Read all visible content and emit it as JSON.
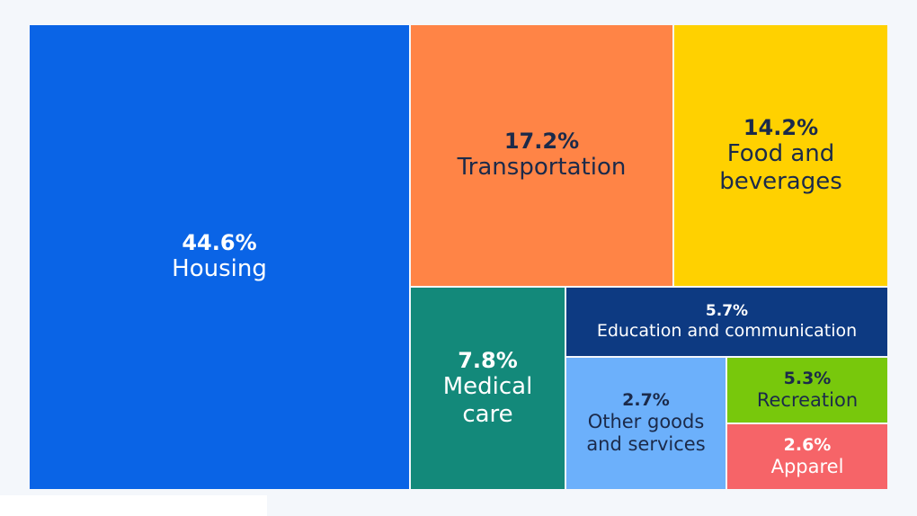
{
  "chart_data": {
    "type": "treemap",
    "title": "",
    "unit": "%",
    "items": [
      {
        "name": "Housing",
        "value": 44.6,
        "value_label": "44.6%",
        "color": "#0a64e6",
        "text_color": "#ffffff"
      },
      {
        "name": "Transportation",
        "value": 17.2,
        "value_label": "17.2%",
        "color": "#ff8446",
        "text_color": "#1b2a4a"
      },
      {
        "name": "Food and\nbeverages",
        "value": 14.2,
        "value_label": "14.2%",
        "color": "#ffd100",
        "text_color": "#1b2a4a"
      },
      {
        "name": "Medical\ncare",
        "value": 7.8,
        "value_label": "7.8%",
        "color": "#13897a",
        "text_color": "#ffffff"
      },
      {
        "name": "Education and communication",
        "value": 5.7,
        "value_label": "5.7%",
        "color": "#0d3a82",
        "text_color": "#ffffff"
      },
      {
        "name": "Other goods\nand services",
        "value": 2.7,
        "value_label": "2.7%",
        "color": "#6cb0fb",
        "text_color": "#1b2a4a"
      },
      {
        "name": "Recreation",
        "value": 5.3,
        "value_label": "5.3%",
        "color": "#78c80c",
        "text_color": "#1b2a4a"
      },
      {
        "name": "Apparel",
        "value": 2.6,
        "value_label": "2.6%",
        "color": "#f66468",
        "text_color": "#ffffff"
      }
    ]
  }
}
